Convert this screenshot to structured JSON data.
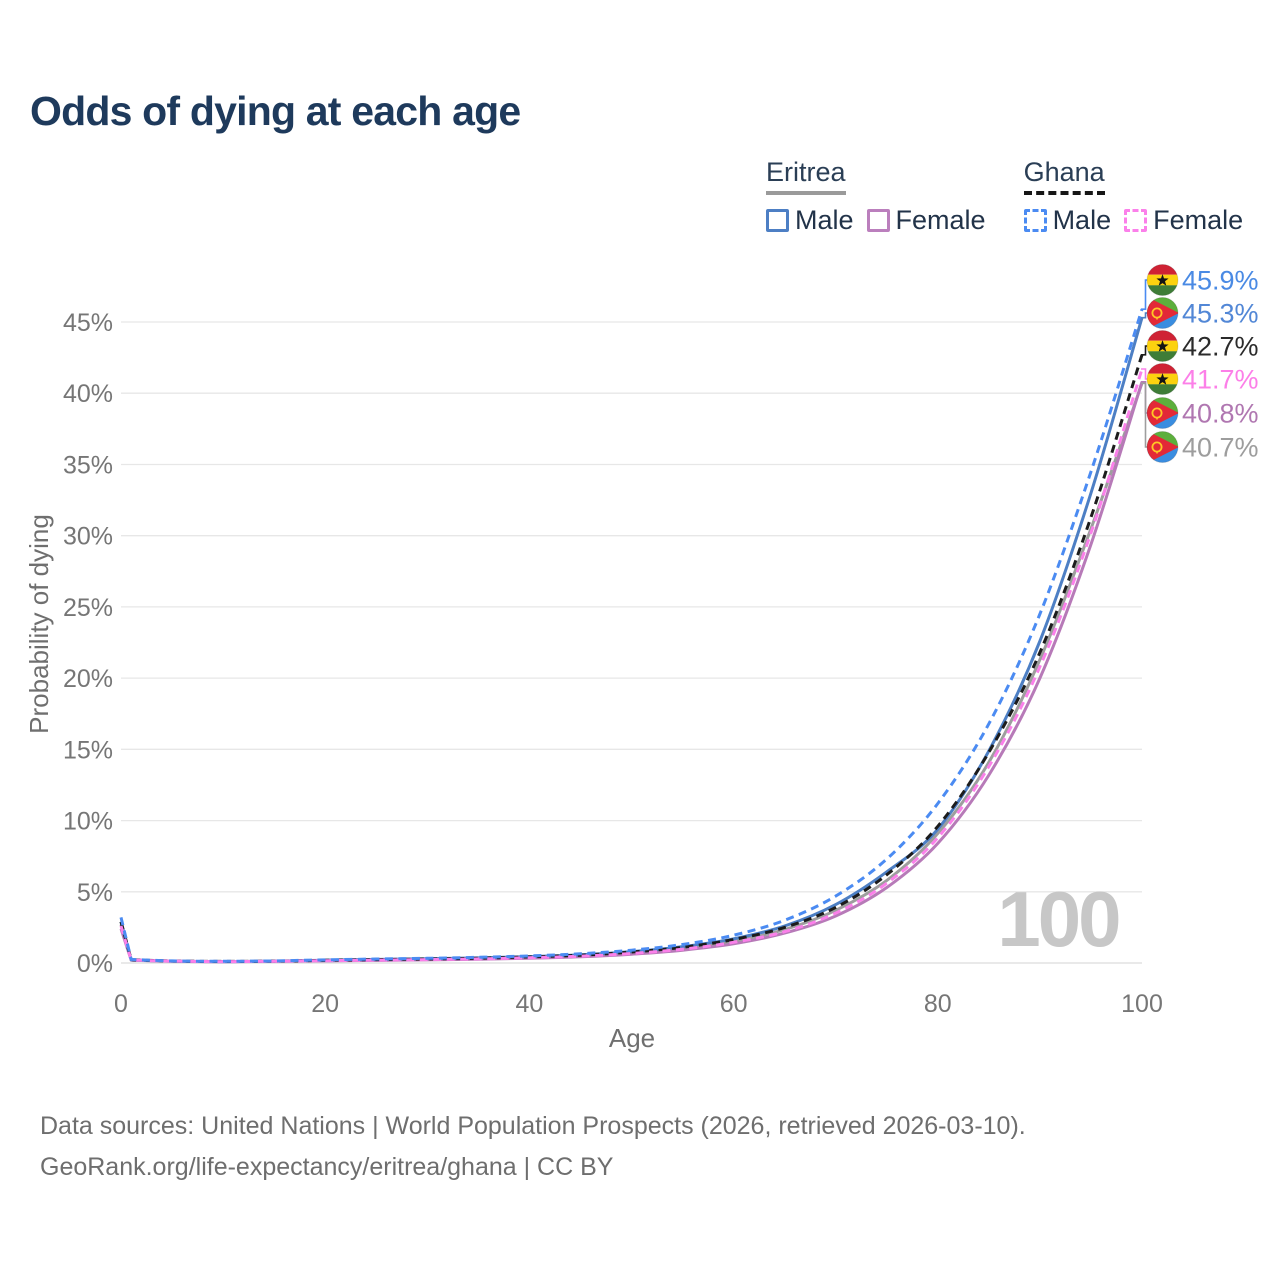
{
  "legend": {
    "groups": [
      {
        "id": "eritrea",
        "label": "Eritrea",
        "line_style": "solid",
        "line_color": "#9a9a9a",
        "items": [
          {
            "id": "eritrea-male",
            "label": "Male",
            "color": "#4d7fc4",
            "style": "solid"
          },
          {
            "id": "eritrea-female",
            "label": "Female",
            "color": "#bb7fbd",
            "style": "solid"
          }
        ]
      },
      {
        "id": "ghana",
        "label": "Ghana",
        "line_style": "dashed",
        "line_color": "#161616",
        "items": [
          {
            "id": "ghana-male",
            "label": "Male",
            "color": "#4b8bf2",
            "style": "dashed"
          },
          {
            "id": "ghana-female",
            "label": "Female",
            "color": "#fb80ea",
            "style": "dashed"
          }
        ]
      }
    ]
  },
  "chart_data": {
    "type": "line",
    "title": "Odds of dying at each age",
    "xlabel": "Age",
    "ylabel": "Probability of dying",
    "x_ticks": [
      0,
      20,
      40,
      60,
      80,
      100
    ],
    "y_tick_labels": [
      "0%",
      "5%",
      "10%",
      "15%",
      "20%",
      "25%",
      "30%",
      "35%",
      "40%",
      "45%"
    ],
    "xlim": [
      0,
      100
    ],
    "ylim_percent": [
      0,
      48
    ],
    "grid": true,
    "legend_position": "top-right",
    "hover_age_indicator": "100",
    "ages": [
      0,
      1,
      5,
      10,
      15,
      20,
      25,
      30,
      35,
      40,
      45,
      50,
      55,
      60,
      65,
      70,
      75,
      80,
      85,
      90,
      95,
      100
    ],
    "series": [
      {
        "id": "eritrea-both",
        "country": "Eritrea",
        "sex": "Both",
        "flag": "eritrea",
        "color": "#9e9e9e",
        "style": "solid",
        "end_label": "40.7%",
        "values": [
          2.7,
          0.21,
          0.13,
          0.1,
          0.12,
          0.17,
          0.22,
          0.26,
          0.31,
          0.4,
          0.51,
          0.71,
          1.02,
          1.52,
          2.35,
          3.7,
          5.8,
          9.1,
          14.1,
          21.3,
          30.5,
          40.7
        ]
      },
      {
        "id": "eritrea-female",
        "country": "Eritrea",
        "sex": "Female",
        "flag": "eritrea",
        "color": "#b77ab8",
        "style": "solid",
        "end_label": "40.8%",
        "values": [
          2.4,
          0.2,
          0.12,
          0.09,
          0.11,
          0.15,
          0.18,
          0.22,
          0.27,
          0.34,
          0.44,
          0.62,
          0.9,
          1.35,
          2.1,
          3.3,
          5.3,
          8.4,
          13.2,
          20.0,
          29.4,
          40.8
        ]
      },
      {
        "id": "eritrea-male",
        "country": "Eritrea",
        "sex": "Male",
        "flag": "eritrea",
        "color": "#4d7fc4",
        "style": "solid",
        "end_label": "45.3%",
        "values": [
          2.9,
          0.22,
          0.13,
          0.1,
          0.13,
          0.2,
          0.25,
          0.3,
          0.36,
          0.45,
          0.58,
          0.8,
          1.15,
          1.7,
          2.6,
          4.1,
          6.4,
          9.4,
          14.9,
          22.6,
          33.0,
          45.3
        ]
      },
      {
        "id": "ghana-both",
        "country": "Ghana",
        "sex": "Both",
        "flag": "ghana",
        "color": "#1c1c1c",
        "style": "dashed",
        "end_label": "42.7%",
        "values": [
          2.9,
          0.23,
          0.14,
          0.11,
          0.13,
          0.19,
          0.24,
          0.28,
          0.34,
          0.43,
          0.55,
          0.77,
          1.1,
          1.65,
          2.5,
          3.9,
          6.2,
          9.6,
          14.8,
          21.8,
          31.3,
          42.7
        ]
      },
      {
        "id": "ghana-female",
        "country": "Ghana",
        "sex": "Female",
        "flag": "ghana",
        "color": "#fb80ea",
        "style": "dashed",
        "end_label": "41.7%",
        "values": [
          2.6,
          0.21,
          0.13,
          0.1,
          0.12,
          0.16,
          0.2,
          0.24,
          0.29,
          0.37,
          0.48,
          0.67,
          0.97,
          1.45,
          2.2,
          3.5,
          5.6,
          8.8,
          13.8,
          20.8,
          30.2,
          41.7
        ]
      },
      {
        "id": "ghana-male",
        "country": "Ghana",
        "sex": "Male",
        "flag": "ghana",
        "color": "#4b8bf2",
        "style": "dashed",
        "end_label": "45.9%",
        "values": [
          3.2,
          0.25,
          0.15,
          0.12,
          0.15,
          0.22,
          0.28,
          0.33,
          0.4,
          0.5,
          0.65,
          0.9,
          1.3,
          1.95,
          3.0,
          4.7,
          7.3,
          11.2,
          16.8,
          24.5,
          34.5,
          45.9
        ]
      }
    ],
    "end_labels": [
      {
        "text": "45.9%",
        "color": "#4a8ae4",
        "flag": "ghana",
        "series": "ghana-male"
      },
      {
        "text": "45.3%",
        "color": "#5287d6",
        "flag": "eritrea",
        "series": "eritrea-male"
      },
      {
        "text": "42.7%",
        "color": "#2b2b2b",
        "flag": "ghana",
        "series": "ghana-both"
      },
      {
        "text": "41.7%",
        "color": "#fc7fe8",
        "flag": "ghana",
        "series": "ghana-female"
      },
      {
        "text": "40.8%",
        "color": "#b077b1",
        "flag": "eritrea",
        "series": "eritrea-female"
      },
      {
        "text": "40.7%",
        "color": "#9d9d9d",
        "flag": "eritrea",
        "series": "eritrea-both"
      }
    ]
  },
  "footer": {
    "line1": "Data sources: United Nations | World Population Prospects (2026, retrieved 2026-03-10).",
    "line2": "GeoRank.org/life-expectancy/eritrea/ghana | CC BY"
  }
}
